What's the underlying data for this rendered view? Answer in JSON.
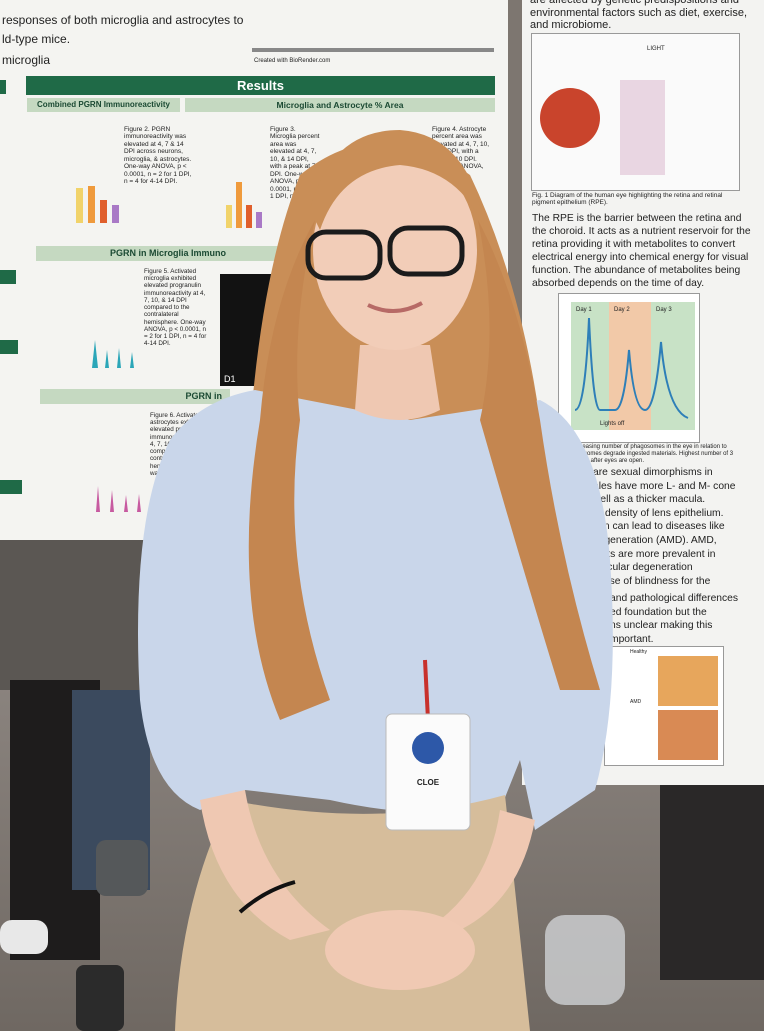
{
  "left_poster": {
    "intro_line_1": "responses of both microglia and astrocytes to",
    "intro_line_2": "ld-type mice.",
    "intro_line_3": "microglia",
    "credit": "Created with BioRender.com",
    "results_header": "Results",
    "subheader_1": "Combined PGRN Immunoreactivity",
    "subheader_2": "Microglia and Astrocyte % Area",
    "figure_2": "Figure 2. PGRN immunoreactivity was elevated at 4, 7 & 14 DPI across neurons, microglia, & astrocytes. One-way ANOVA, p < 0.0001, n = 2 for 1 DPI, n = 4 for 4-14 DPI.",
    "figure_3": "Figure 3. Microglia percent area was elevated at 4, 7, 10, & 14 DPI, with a peak at 7 DPI. One-way ANOVA, p < 0.0001, n = 2 for 1 DPI, n = 4 for",
    "figure_4": "Figure 4. Astrocyte percent area was elevated at 4, 7, 10, & 14 DPI, with a peak at 10 DPI. One-way ANOVA,",
    "section_microglia": "PGRN in Microglia Immuno",
    "figure_5": "Figure 5. Activated microglia exhibited elevated progranulin immunoreactivity at 4, 7, 10, & 14 DPI compared to the contralateral hemisphere. One-way ANOVA, p < 0.0001, n = 2 for 1 DPI, n = 4 for 4-14 DPI.",
    "section_astrocytes": "PGRN in",
    "figure_6": "Figure 6. Activated astrocytes exhibited elevated progranulin immunoreactivity at 4, 7, 10, & 14 DPI compared to the contralateral hemisphere. One-way ANOVA",
    "panel_label": "D1"
  },
  "right_poster": {
    "intro": "are affected by genetic predispositions and environmental factors such as diet, exercise, and microbiome.",
    "light_label": "LIGHT",
    "fig_1_caption": "Fig. 1 Diagram of the human eye highlighting the retina and retinal pigment epithelium (RPE).",
    "rpe_paragraph": "The RPE is the barrier between the retina and the choroid. It acts as a nutrient reservoir for the retina providing it with metabolites to convert electrical energy into chemical energy for visual function. The abundance of metabolites being absorbed depends on the time of day.",
    "day_labels": [
      "Day 1",
      "Day 2",
      "Day 3"
    ],
    "lights_off": "Lights off",
    "fig_2_caption": "ncreasing number of phagosomes in the eye in relation to the somes degrade ingested materials. Highest number of 3 hours after eyes are open.",
    "dimorphism_lines": [
      "are sexual dimorphisms in",
      "ales have more L- and M- cone",
      "well as a thicker macula.",
      "er density of lens epithelium.",
      "tion can lead to diseases like",
      "degeneration (AMD). AMD,",
      "racts are more prevalent in",
      "macular degeneration",
      "cause of blindness for the"
    ],
    "closing_lines": [
      "and pathological differences",
      "ed foundation but the",
      "ns unclear making this",
      "mportant."
    ],
    "healthy_label": "Healthy",
    "amd_label": "AMD"
  },
  "badge": {
    "name": "CLOE"
  }
}
